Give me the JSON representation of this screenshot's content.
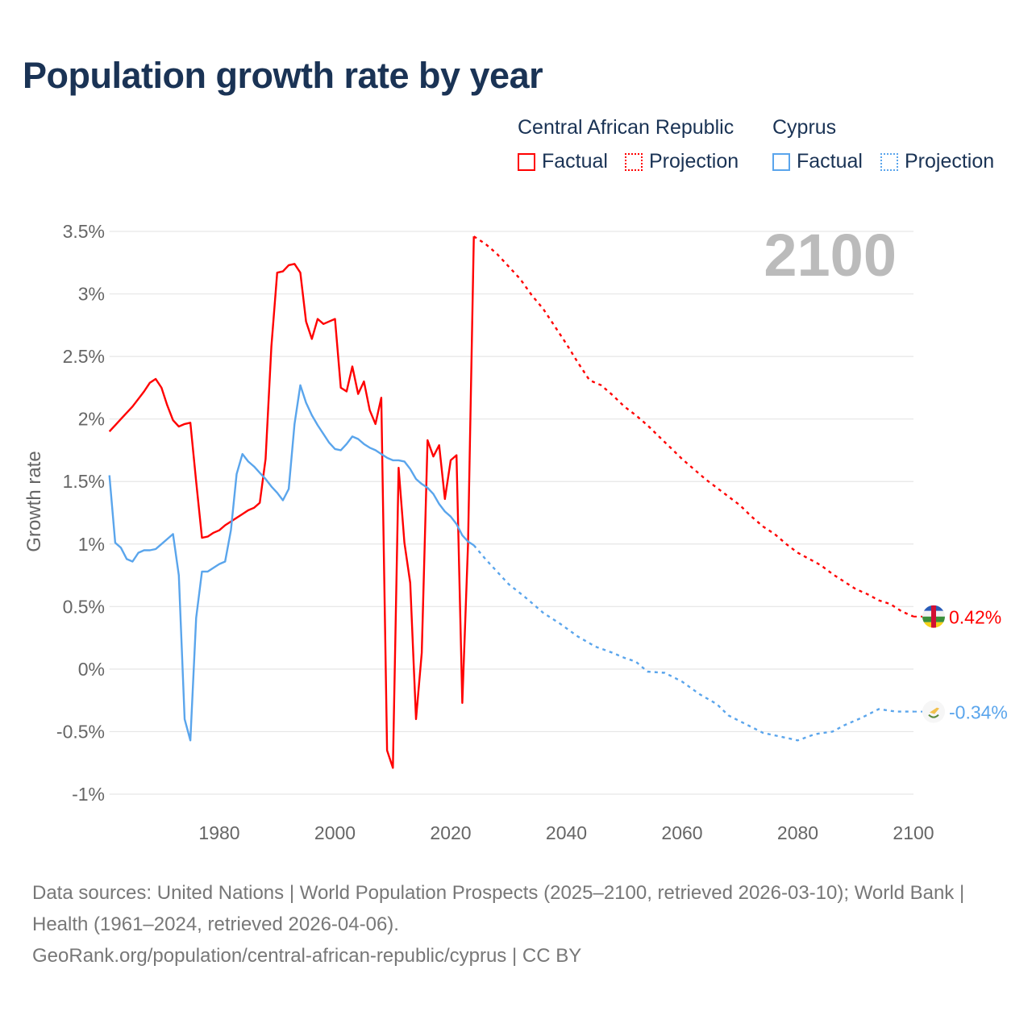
{
  "title": "Population growth rate by year",
  "legend": {
    "groups": [
      {
        "name": "Central African Republic",
        "factual": "Factual",
        "projection": "Projection",
        "color": "#ff0000"
      },
      {
        "name": "Cyprus",
        "factual": "Factual",
        "projection": "Projection",
        "color": "#5aa5ec"
      }
    ]
  },
  "year_label": "2100",
  "footer": {
    "sources": "Data sources: United Nations | World Population Prospects (2025–2100, retrieved 2026-03-10); World Bank | Health (1961–2024, retrieved 2026-04-06).",
    "link": "GeoRank.org/population/central-african-republic/cyprus | CC BY"
  },
  "chart_data": {
    "type": "line",
    "title": "Population growth rate by year",
    "xlabel": "",
    "ylabel": "Growth rate",
    "xlim": [
      1961,
      2100
    ],
    "ylim": [
      -1,
      3.5
    ],
    "x_ticks": [
      1980,
      2000,
      2020,
      2040,
      2060,
      2080,
      2100
    ],
    "y_ticks": [
      {
        "v": 3.5,
        "label": "3.5%"
      },
      {
        "v": 3,
        "label": "3%"
      },
      {
        "v": 2.5,
        "label": "2.5%"
      },
      {
        "v": 2,
        "label": "2%"
      },
      {
        "v": 1.5,
        "label": "1.5%"
      },
      {
        "v": 1,
        "label": "1%"
      },
      {
        "v": 0.5,
        "label": "0.5%"
      },
      {
        "v": 0,
        "label": "0%"
      },
      {
        "v": -0.5,
        "label": "-0.5%"
      },
      {
        "v": -1,
        "label": "-1%"
      }
    ],
    "grid": true,
    "legend_position": "top-right",
    "series": [
      {
        "name": "Central African Republic",
        "kind": "Factual",
        "color": "#ff0000",
        "dashed": false,
        "x": [
          1961,
          1962,
          1963,
          1964,
          1965,
          1966,
          1967,
          1968,
          1969,
          1970,
          1971,
          1972,
          1973,
          1974,
          1975,
          1976,
          1977,
          1978,
          1979,
          1980,
          1981,
          1982,
          1983,
          1984,
          1985,
          1986,
          1987,
          1988,
          1989,
          1990,
          1991,
          1992,
          1993,
          1994,
          1995,
          1996,
          1997,
          1998,
          1999,
          2000,
          2001,
          2002,
          2003,
          2004,
          2005,
          2006,
          2007,
          2008,
          2009,
          2010,
          2011,
          2012,
          2013,
          2014,
          2015,
          2016,
          2017,
          2018,
          2019,
          2020,
          2021,
          2022,
          2023,
          2024
        ],
        "y": [
          1.9,
          1.95,
          2.0,
          2.05,
          2.1,
          2.16,
          2.22,
          2.29,
          2.32,
          2.25,
          2.11,
          1.99,
          1.94,
          1.96,
          1.97,
          1.5,
          1.05,
          1.06,
          1.09,
          1.11,
          1.15,
          1.18,
          1.21,
          1.24,
          1.27,
          1.29,
          1.33,
          1.68,
          2.58,
          3.17,
          3.18,
          3.23,
          3.24,
          3.17,
          2.78,
          2.64,
          2.8,
          2.76,
          2.78,
          2.8,
          2.25,
          2.22,
          2.42,
          2.2,
          2.3,
          2.07,
          1.96,
          2.17,
          -0.65,
          -0.79,
          1.61,
          1.01,
          0.69,
          -0.4,
          0.13,
          1.83,
          1.7,
          1.79,
          1.36,
          1.67,
          1.71,
          -0.27,
          1.0,
          3.46
        ]
      },
      {
        "name": "Central African Republic",
        "kind": "Projection",
        "color": "#ff0000",
        "dashed": true,
        "x": [
          2024,
          2026,
          2028,
          2030,
          2032,
          2034,
          2036,
          2038,
          2040,
          2042,
          2044,
          2046,
          2048,
          2050,
          2052,
          2054,
          2056,
          2058,
          2060,
          2062,
          2064,
          2066,
          2068,
          2070,
          2072,
          2074,
          2076,
          2078,
          2080,
          2082,
          2084,
          2086,
          2088,
          2090,
          2092,
          2094,
          2096,
          2098,
          2100
        ],
        "y": [
          3.46,
          3.4,
          3.32,
          3.22,
          3.12,
          2.99,
          2.88,
          2.74,
          2.6,
          2.45,
          2.31,
          2.27,
          2.19,
          2.1,
          2.03,
          1.95,
          1.86,
          1.77,
          1.68,
          1.6,
          1.52,
          1.45,
          1.38,
          1.31,
          1.22,
          1.14,
          1.08,
          1.0,
          0.93,
          0.88,
          0.83,
          0.76,
          0.7,
          0.64,
          0.6,
          0.55,
          0.52,
          0.46,
          0.42
        ]
      },
      {
        "name": "Cyprus",
        "kind": "Factual",
        "color": "#5aa5ec",
        "dashed": false,
        "x": [
          1961,
          1962,
          1963,
          1964,
          1965,
          1966,
          1967,
          1968,
          1969,
          1970,
          1971,
          1972,
          1973,
          1974,
          1975,
          1976,
          1977,
          1978,
          1979,
          1980,
          1981,
          1982,
          1983,
          1984,
          1985,
          1986,
          1987,
          1988,
          1989,
          1990,
          1991,
          1992,
          1993,
          1994,
          1995,
          1996,
          1997,
          1998,
          1999,
          2000,
          2001,
          2002,
          2003,
          2004,
          2005,
          2006,
          2007,
          2008,
          2009,
          2010,
          2011,
          2012,
          2013,
          2014,
          2015,
          2016,
          2017,
          2018,
          2019,
          2020,
          2021,
          2022,
          2023,
          2024
        ],
        "y": [
          1.55,
          1.01,
          0.97,
          0.88,
          0.86,
          0.93,
          0.95,
          0.95,
          0.96,
          1.0,
          1.04,
          1.08,
          0.75,
          -0.4,
          -0.57,
          0.41,
          0.78,
          0.78,
          0.81,
          0.84,
          0.86,
          1.11,
          1.56,
          1.72,
          1.66,
          1.62,
          1.57,
          1.52,
          1.46,
          1.41,
          1.35,
          1.44,
          1.96,
          2.27,
          2.13,
          2.03,
          1.95,
          1.88,
          1.81,
          1.76,
          1.75,
          1.8,
          1.86,
          1.84,
          1.8,
          1.77,
          1.75,
          1.72,
          1.69,
          1.67,
          1.67,
          1.66,
          1.6,
          1.52,
          1.48,
          1.45,
          1.4,
          1.32,
          1.26,
          1.22,
          1.16,
          1.07,
          1.02,
          0.99
        ]
      },
      {
        "name": "Cyprus",
        "kind": "Projection",
        "color": "#5aa5ec",
        "dashed": true,
        "x": [
          2024,
          2026,
          2028,
          2030,
          2033,
          2036,
          2039,
          2042,
          2045,
          2048,
          2050,
          2052,
          2054,
          2057,
          2060,
          2063,
          2066,
          2068,
          2071,
          2074,
          2077,
          2080,
          2083,
          2086,
          2088,
          2091,
          2094,
          2097,
          2100
        ],
        "y": [
          0.99,
          0.88,
          0.78,
          0.68,
          0.57,
          0.45,
          0.36,
          0.26,
          0.18,
          0.13,
          0.09,
          0.06,
          -0.02,
          -0.03,
          -0.1,
          -0.2,
          -0.28,
          -0.37,
          -0.44,
          -0.51,
          -0.54,
          -0.57,
          -0.52,
          -0.5,
          -0.45,
          -0.39,
          -0.32,
          -0.34,
          -0.34
        ]
      }
    ],
    "end_labels": [
      {
        "series": "Central African Republic",
        "value": 0.42,
        "label": "0.42%",
        "color": "#ff0000",
        "flag": "central-african-republic-flag"
      },
      {
        "series": "Cyprus",
        "value": -0.34,
        "label": "-0.34%",
        "color": "#5aa5ec",
        "flag": "cyprus-flag"
      }
    ]
  }
}
